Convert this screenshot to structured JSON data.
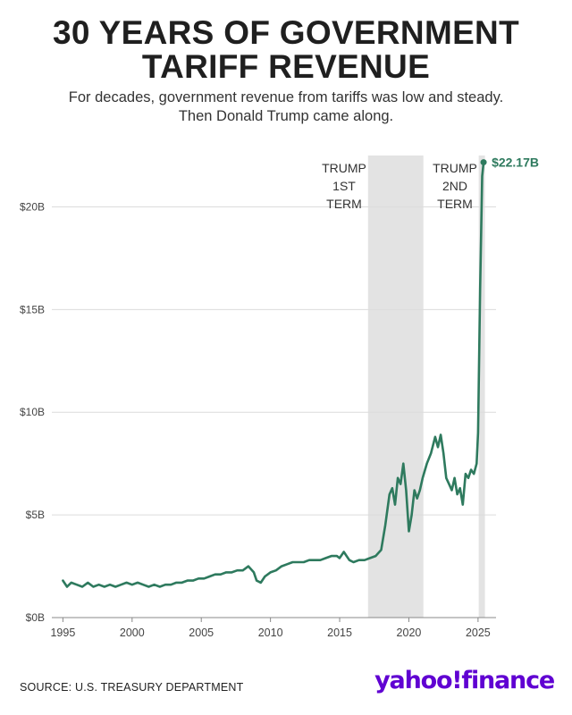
{
  "title_line1": "30 YEARS OF GOVERNMENT",
  "title_line2": "TARIFF REVENUE",
  "subtitle_line1": "For decades, government revenue from tariffs was low and steady.",
  "subtitle_line2": "Then Donald Trump came along.",
  "source": "SOURCE: U.S. TREASURY DEPARTMENT",
  "logo": "yahoo!finance",
  "colors": {
    "line": "#2e7a5e",
    "shade": "#e3e3e3",
    "grid": "#dcdcdc",
    "logo": "#6001d2"
  },
  "chart_data": {
    "type": "line",
    "title": "30 YEARS OF GOVERNMENT TARIFF REVENUE",
    "xlabel": "",
    "ylabel": "",
    "xlim": [
      1994.2,
      2026.3
    ],
    "ylim": [
      0,
      22.5
    ],
    "x_ticks": [
      1995,
      2000,
      2005,
      2010,
      2015,
      2020,
      2025
    ],
    "x_tick_labels": [
      "1995",
      "2000",
      "2005",
      "2010",
      "2015",
      "2020",
      "2025"
    ],
    "y_ticks": [
      0,
      5,
      10,
      15,
      20
    ],
    "y_tick_labels": [
      "$0B",
      "$5B",
      "$10B",
      "$15B",
      "$20B"
    ],
    "grid": true,
    "shaded_periods": [
      {
        "label_lines": [
          "TRUMP",
          "1ST",
          "TERM"
        ],
        "start": 2017.05,
        "end": 2021.05
      },
      {
        "label_lines": [
          "TRUMP",
          "2ND",
          "TERM"
        ],
        "start": 2025.05,
        "end": 2025.5
      }
    ],
    "end_label": "$22.17B",
    "series": [
      {
        "x": [
          1995.0,
          1995.3,
          1995.6,
          1996.0,
          1996.4,
          1996.8,
          1997.2,
          1997.6,
          1998.0,
          1998.4,
          1998.8,
          1999.2,
          1999.6,
          2000.0,
          2000.4,
          2000.8,
          2001.2,
          2001.6,
          2002.0,
          2002.4,
          2002.8,
          2003.2,
          2003.6,
          2004.0,
          2004.4,
          2004.8,
          2005.2,
          2005.6,
          2006.0,
          2006.4,
          2006.8,
          2007.2,
          2007.6,
          2008.0,
          2008.4,
          2008.8,
          2009.0,
          2009.3,
          2009.6,
          2010.0,
          2010.4,
          2010.8,
          2011.2,
          2011.6,
          2012.0,
          2012.4,
          2012.8,
          2013.2,
          2013.6,
          2014.0,
          2014.4,
          2014.8,
          2015.0,
          2015.3,
          2015.5,
          2015.7,
          2016.0,
          2016.4,
          2016.8,
          2017.2,
          2017.6,
          2018.0,
          2018.3,
          2018.6,
          2018.8,
          2019.0,
          2019.2,
          2019.4,
          2019.6,
          2019.8,
          2020.0,
          2020.2,
          2020.4,
          2020.6,
          2020.8,
          2021.0,
          2021.3,
          2021.6,
          2021.9,
          2022.1,
          2022.3,
          2022.5,
          2022.7,
          2022.9,
          2023.1,
          2023.3,
          2023.5,
          2023.7,
          2023.9,
          2024.1,
          2024.3,
          2024.5,
          2024.7,
          2024.9,
          2025.0,
          2025.15,
          2025.3,
          2025.4
        ],
        "values": [
          1.8,
          1.5,
          1.7,
          1.6,
          1.5,
          1.7,
          1.5,
          1.6,
          1.5,
          1.6,
          1.5,
          1.6,
          1.7,
          1.6,
          1.7,
          1.6,
          1.5,
          1.6,
          1.5,
          1.6,
          1.6,
          1.7,
          1.7,
          1.8,
          1.8,
          1.9,
          1.9,
          2.0,
          2.1,
          2.1,
          2.2,
          2.2,
          2.3,
          2.3,
          2.5,
          2.2,
          1.8,
          1.7,
          2.0,
          2.2,
          2.3,
          2.5,
          2.6,
          2.7,
          2.7,
          2.7,
          2.8,
          2.8,
          2.8,
          2.9,
          3.0,
          3.0,
          2.9,
          3.2,
          3.0,
          2.8,
          2.7,
          2.8,
          2.8,
          2.9,
          3.0,
          3.3,
          4.5,
          6.0,
          6.3,
          5.5,
          6.8,
          6.5,
          7.5,
          6.2,
          4.2,
          5.0,
          6.2,
          5.8,
          6.2,
          6.8,
          7.5,
          8.0,
          8.8,
          8.3,
          8.9,
          8.0,
          6.8,
          6.5,
          6.2,
          6.8,
          6.0,
          6.3,
          5.5,
          7.0,
          6.8,
          7.2,
          7.0,
          7.5,
          9.0,
          16.0,
          21.5,
          22.17
        ]
      }
    ]
  }
}
